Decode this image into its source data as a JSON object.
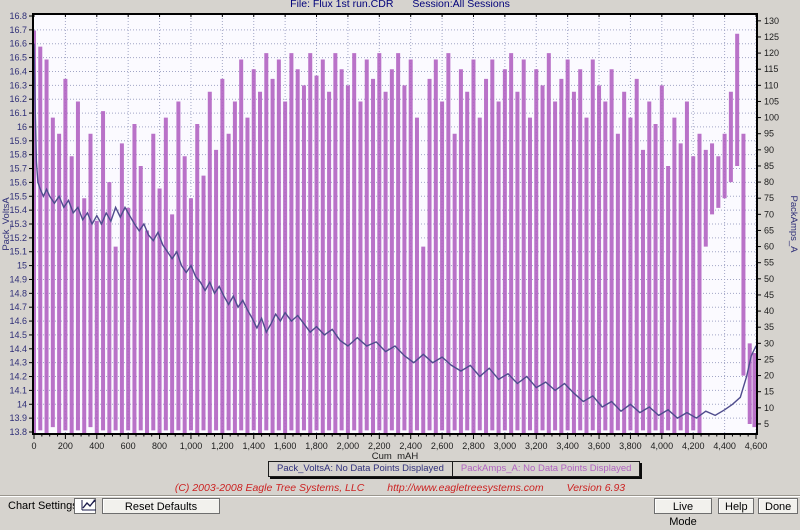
{
  "header": {
    "title_file": "File: Flux 1st run.CDR",
    "title_session": "Session:All Sessions"
  },
  "chart_data": {
    "type": "line",
    "title": "File: Flux 1st run.CDR  Session:All Sessions",
    "xlabel": "Cum_mAH",
    "xlim": [
      0,
      4630
    ],
    "x_ticks": [
      0,
      200,
      400,
      600,
      800,
      1000,
      1200,
      1400,
      1600,
      1800,
      2000,
      2200,
      2400,
      2600,
      2800,
      3000,
      3200,
      3400,
      3600,
      3800,
      4000,
      4200,
      4400,
      4600
    ],
    "x_minor_tick_step": 50,
    "grid": true,
    "legend_position": "bottom",
    "left_axis": {
      "label": "Pack_VoltsA",
      "ylim": [
        13.8,
        16.8
      ],
      "ticks": [
        16.8,
        16.7,
        16.6,
        16.5,
        16.4,
        16.3,
        16.2,
        16.1,
        16,
        15.9,
        15.8,
        15.7,
        15.6,
        15.5,
        15.4,
        15.3,
        15.2,
        15.1,
        15,
        14.9,
        14.8,
        14.7,
        14.6,
        14.5,
        14.4,
        14.3,
        14.2,
        14.1,
        14,
        13.9,
        13.8
      ]
    },
    "right_axis": {
      "label": "PackAmps_A",
      "ylim": [
        2.5,
        131.5
      ],
      "ticks": [
        130,
        125,
        120,
        115,
        110,
        105,
        100,
        95,
        90,
        85,
        80,
        75,
        70,
        65,
        60,
        55,
        50,
        45,
        40,
        35,
        30,
        25,
        20,
        15,
        10,
        5
      ]
    },
    "series": [
      {
        "name": "Pack_VoltsA",
        "axis": "left",
        "draw": "line",
        "points": [
          [
            0,
            16.6
          ],
          [
            8,
            16.1
          ],
          [
            15,
            15.75
          ],
          [
            25,
            15.6
          ],
          [
            40,
            15.55
          ],
          [
            60,
            15.5
          ],
          [
            80,
            15.55
          ],
          [
            100,
            15.5
          ],
          [
            130,
            15.45
          ],
          [
            160,
            15.5
          ],
          [
            190,
            15.42
          ],
          [
            220,
            15.47
          ],
          [
            250,
            15.38
          ],
          [
            280,
            15.42
          ],
          [
            310,
            15.33
          ],
          [
            340,
            15.38
          ],
          [
            370,
            15.3
          ],
          [
            400,
            15.36
          ],
          [
            430,
            15.3
          ],
          [
            460,
            15.38
          ],
          [
            490,
            15.32
          ],
          [
            520,
            15.42
          ],
          [
            550,
            15.35
          ],
          [
            580,
            15.42
          ],
          [
            610,
            15.36
          ],
          [
            640,
            15.3
          ],
          [
            670,
            15.25
          ],
          [
            700,
            15.3
          ],
          [
            730,
            15.22
          ],
          [
            760,
            15.18
          ],
          [
            790,
            15.24
          ],
          [
            820,
            15.15
          ],
          [
            850,
            15.1
          ],
          [
            880,
            15.05
          ],
          [
            910,
            15.1
          ],
          [
            940,
            15.0
          ],
          [
            970,
            14.95
          ],
          [
            1000,
            15.0
          ],
          [
            1030,
            14.92
          ],
          [
            1060,
            14.88
          ],
          [
            1090,
            14.82
          ],
          [
            1120,
            14.88
          ],
          [
            1150,
            14.8
          ],
          [
            1180,
            14.85
          ],
          [
            1210,
            14.78
          ],
          [
            1240,
            14.72
          ],
          [
            1270,
            14.78
          ],
          [
            1300,
            14.7
          ],
          [
            1330,
            14.75
          ],
          [
            1360,
            14.68
          ],
          [
            1390,
            14.62
          ],
          [
            1420,
            14.55
          ],
          [
            1450,
            14.62
          ],
          [
            1480,
            14.52
          ],
          [
            1510,
            14.58
          ],
          [
            1540,
            14.65
          ],
          [
            1570,
            14.6
          ],
          [
            1600,
            14.66
          ],
          [
            1640,
            14.6
          ],
          [
            1680,
            14.64
          ],
          [
            1720,
            14.58
          ],
          [
            1760,
            14.52
          ],
          [
            1800,
            14.56
          ],
          [
            1850,
            14.5
          ],
          [
            1900,
            14.54
          ],
          [
            1950,
            14.46
          ],
          [
            2000,
            14.42
          ],
          [
            2060,
            14.48
          ],
          [
            2120,
            14.42
          ],
          [
            2180,
            14.45
          ],
          [
            2240,
            14.38
          ],
          [
            2300,
            14.42
          ],
          [
            2360,
            14.35
          ],
          [
            2420,
            14.3
          ],
          [
            2480,
            14.36
          ],
          [
            2540,
            14.3
          ],
          [
            2600,
            14.34
          ],
          [
            2660,
            14.28
          ],
          [
            2720,
            14.24
          ],
          [
            2780,
            14.28
          ],
          [
            2840,
            14.2
          ],
          [
            2900,
            14.26
          ],
          [
            2960,
            14.18
          ],
          [
            3020,
            14.22
          ],
          [
            3080,
            14.15
          ],
          [
            3140,
            14.2
          ],
          [
            3200,
            14.12
          ],
          [
            3260,
            14.16
          ],
          [
            3320,
            14.1
          ],
          [
            3380,
            14.15
          ],
          [
            3440,
            14.08
          ],
          [
            3500,
            14.02
          ],
          [
            3560,
            14.06
          ],
          [
            3620,
            13.98
          ],
          [
            3680,
            14.02
          ],
          [
            3740,
            13.95
          ],
          [
            3800,
            14.0
          ],
          [
            3860,
            13.94
          ],
          [
            3920,
            13.98
          ],
          [
            3980,
            13.92
          ],
          [
            4040,
            13.96
          ],
          [
            4100,
            13.9
          ],
          [
            4160,
            13.94
          ],
          [
            4220,
            13.9
          ],
          [
            4280,
            13.95
          ],
          [
            4340,
            13.92
          ],
          [
            4400,
            13.96
          ],
          [
            4450,
            14.0
          ],
          [
            4500,
            14.05
          ],
          [
            4540,
            14.2
          ],
          [
            4570,
            14.35
          ],
          [
            4600,
            14.42
          ]
        ]
      },
      {
        "name": "PackAmps_A",
        "axis": "right",
        "draw": "vertical-range",
        "points": [
          [
            0,
            2,
            127
          ],
          [
            40,
            3,
            122
          ],
          [
            80,
            2,
            118
          ],
          [
            120,
            4,
            100
          ],
          [
            160,
            2,
            95
          ],
          [
            200,
            3,
            112
          ],
          [
            240,
            2,
            88
          ],
          [
            280,
            3,
            105
          ],
          [
            320,
            2,
            75
          ],
          [
            360,
            4,
            95
          ],
          [
            400,
            2,
            68
          ],
          [
            440,
            3,
            102
          ],
          [
            480,
            2,
            80
          ],
          [
            520,
            3,
            60
          ],
          [
            560,
            2,
            92
          ],
          [
            600,
            3,
            72
          ],
          [
            640,
            2,
            98
          ],
          [
            680,
            3,
            85
          ],
          [
            720,
            2,
            65
          ],
          [
            760,
            3,
            95
          ],
          [
            800,
            2,
            78
          ],
          [
            840,
            3,
            100
          ],
          [
            880,
            2,
            70
          ],
          [
            920,
            3,
            105
          ],
          [
            960,
            2,
            88
          ],
          [
            1000,
            3,
            75
          ],
          [
            1040,
            2,
            98
          ],
          [
            1080,
            3,
            82
          ],
          [
            1120,
            2,
            108
          ],
          [
            1160,
            3,
            90
          ],
          [
            1200,
            2,
            112
          ],
          [
            1240,
            3,
            95
          ],
          [
            1280,
            2,
            105
          ],
          [
            1320,
            3,
            118
          ],
          [
            1360,
            2,
            100
          ],
          [
            1400,
            3,
            115
          ],
          [
            1440,
            2,
            108
          ],
          [
            1480,
            3,
            120
          ],
          [
            1520,
            2,
            112
          ],
          [
            1560,
            3,
            118
          ],
          [
            1600,
            2,
            105
          ],
          [
            1640,
            3,
            120
          ],
          [
            1680,
            2,
            115
          ],
          [
            1720,
            3,
            110
          ],
          [
            1760,
            2,
            120
          ],
          [
            1800,
            3,
            113
          ],
          [
            1840,
            2,
            118
          ],
          [
            1880,
            3,
            108
          ],
          [
            1920,
            2,
            120
          ],
          [
            1960,
            3,
            115
          ],
          [
            2000,
            2,
            110
          ],
          [
            2040,
            3,
            120
          ],
          [
            2080,
            2,
            105
          ],
          [
            2120,
            3,
            118
          ],
          [
            2160,
            2,
            112
          ],
          [
            2200,
            3,
            120
          ],
          [
            2240,
            2,
            108
          ],
          [
            2280,
            3,
            115
          ],
          [
            2320,
            2,
            120
          ],
          [
            2360,
            3,
            110
          ],
          [
            2400,
            2,
            118
          ],
          [
            2440,
            3,
            100
          ],
          [
            2480,
            2,
            60
          ],
          [
            2520,
            3,
            112
          ],
          [
            2560,
            2,
            118
          ],
          [
            2600,
            3,
            105
          ],
          [
            2640,
            2,
            120
          ],
          [
            2680,
            3,
            95
          ],
          [
            2720,
            2,
            115
          ],
          [
            2760,
            3,
            108
          ],
          [
            2800,
            2,
            118
          ],
          [
            2840,
            3,
            100
          ],
          [
            2880,
            2,
            112
          ],
          [
            2920,
            3,
            118
          ],
          [
            2960,
            2,
            105
          ],
          [
            3000,
            3,
            115
          ],
          [
            3040,
            2,
            120
          ],
          [
            3080,
            3,
            108
          ],
          [
            3120,
            2,
            118
          ],
          [
            3160,
            3,
            100
          ],
          [
            3200,
            2,
            115
          ],
          [
            3240,
            3,
            110
          ],
          [
            3280,
            2,
            120
          ],
          [
            3320,
            3,
            105
          ],
          [
            3360,
            2,
            112
          ],
          [
            3400,
            3,
            118
          ],
          [
            3440,
            2,
            108
          ],
          [
            3480,
            3,
            115
          ],
          [
            3520,
            2,
            100
          ],
          [
            3560,
            3,
            118
          ],
          [
            3600,
            2,
            110
          ],
          [
            3640,
            3,
            105
          ],
          [
            3680,
            2,
            115
          ],
          [
            3720,
            3,
            95
          ],
          [
            3760,
            2,
            108
          ],
          [
            3800,
            3,
            100
          ],
          [
            3840,
            2,
            112
          ],
          [
            3880,
            3,
            90
          ],
          [
            3920,
            2,
            105
          ],
          [
            3960,
            3,
            98
          ],
          [
            4000,
            2,
            110
          ],
          [
            4040,
            3,
            85
          ],
          [
            4080,
            2,
            100
          ],
          [
            4120,
            3,
            92
          ],
          [
            4160,
            2,
            105
          ],
          [
            4200,
            3,
            88
          ],
          [
            4240,
            2,
            95
          ],
          [
            4280,
            60,
            90
          ],
          [
            4320,
            70,
            92
          ],
          [
            4360,
            72,
            88
          ],
          [
            4400,
            75,
            95
          ],
          [
            4440,
            80,
            108
          ],
          [
            4480,
            85,
            126
          ],
          [
            4520,
            20,
            95
          ],
          [
            4560,
            5,
            30
          ],
          [
            4590,
            4,
            27
          ]
        ]
      }
    ]
  },
  "legend": {
    "volts_label": "Pack_VoltsA: No Data Points Displayed",
    "amps_label": "PackAmps_A: No Data Points Displayed"
  },
  "footer": {
    "copyright": "(C) 2003-2008 Eagle Tree Systems, LLC",
    "url": "http://www.eagletreesystems.com",
    "version": "Version 6.93"
  },
  "toolbar": {
    "chart_settings_label": "Chart Settings:",
    "reset_defaults_label": "Reset Defaults",
    "live_mode_label": "Live Mode",
    "help_label": "Help",
    "done_label": "Done"
  },
  "colors": {
    "volts": "#4f4c8d",
    "amps": "#b163c2",
    "grid": "#a2a6c6",
    "axis_text": "#2f2f78",
    "tick_text": "#1c1c1c",
    "title": "#00007a",
    "copyright": "#cc2222",
    "plot_bg": "#fbfaff",
    "window_bg": "#d6d3ce"
  }
}
